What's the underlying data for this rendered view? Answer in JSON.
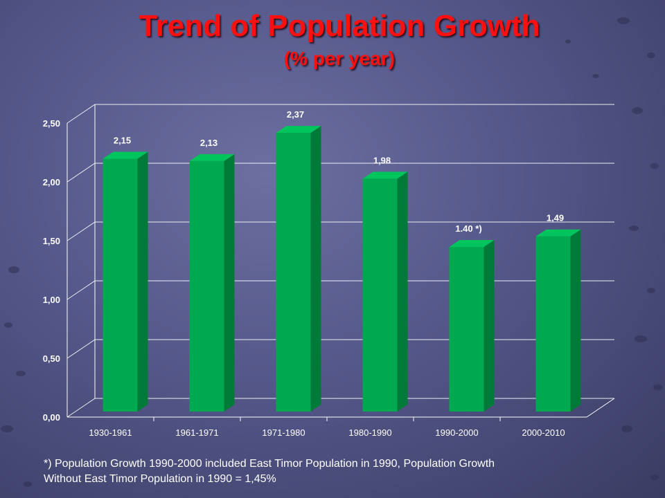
{
  "title": "Trend of Population Growth",
  "subtitle": "(% per year)",
  "footnote_line1": "*) Population Growth 1990-2000 included East Timor Population in 1990, Population Growth",
  "footnote_line2": "Without East Timor Population in 1990 = 1,45%",
  "colors": {
    "bar_front": "#00a84f",
    "bar_side": "#007a38",
    "bar_top": "#00c45c",
    "title": "#ff1010"
  },
  "chart_data": {
    "type": "bar",
    "categories": [
      "1930-1961",
      "1961-1971",
      "1971-1980",
      "1980-1990",
      "1990-2000",
      "2000-2010"
    ],
    "values": [
      2.15,
      2.13,
      2.37,
      1.98,
      1.4,
      1.49
    ],
    "data_labels": [
      "2,15",
      "2,13",
      "2,37",
      "1,98",
      "1.40  *)",
      "1,49"
    ],
    "yticks": [
      "0,00",
      "0,50",
      "1,00",
      "1,50",
      "2,00",
      "2,50"
    ],
    "ylim": [
      0,
      2.5
    ],
    "grid": true,
    "style": "3d"
  }
}
